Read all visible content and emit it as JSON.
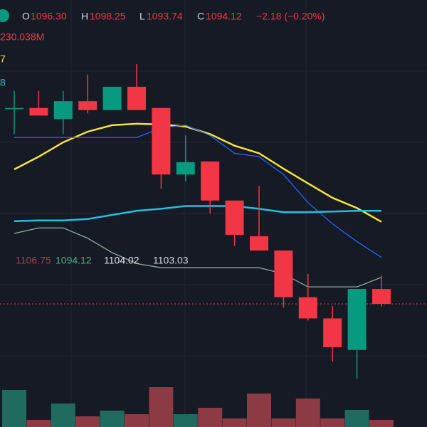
{
  "chart_data": {
    "type": "candlestick",
    "header": {
      "open_label": "O",
      "open": "1096.30",
      "high_label": "H",
      "high": "1098.25",
      "low_label": "L",
      "low": "1093.74",
      "close_label": "C",
      "close": "1094.12",
      "change": "−2.18 (−0.20%)"
    },
    "volume_label": "230.038M",
    "ma_label_1": "7",
    "ma_label_2": "8",
    "band_labels": [
      "1106.75",
      "1094.12",
      "1104.02",
      "1103.03"
    ],
    "categories": [
      null,
      null,
      null,
      null,
      null,
      null,
      null,
      null,
      null,
      null,
      null,
      null,
      null,
      null,
      null,
      null
    ],
    "open": [
      1122.7,
      1122.7,
      1121.1,
      1123.7,
      1122.4,
      1125.8,
      1122.7,
      1113.0,
      1114.9,
      1109.2,
      1104.0,
      1101.9,
      1095.1,
      1092.0,
      1087.4,
      1096.3
    ],
    "high": [
      1125.2,
      1125.2,
      1125.2,
      1127.6,
      1125.8,
      1129.1,
      1122.7,
      1118.7,
      1114.9,
      1109.2,
      1111.3,
      1101.9,
      1098.5,
      1093.8,
      1096.3,
      1098.25
    ],
    "low": [
      1118.9,
      1121.6,
      1118.9,
      1121.9,
      1122.4,
      1122.4,
      1110.9,
      1112.0,
      1107.3,
      1102.6,
      1101.9,
      1093.6,
      1091.7,
      1085.7,
      1083.2,
      1093.74
    ],
    "close": [
      1122.7,
      1121.6,
      1123.7,
      1122.4,
      1125.8,
      1122.4,
      1113.0,
      1114.8,
      1109.2,
      1104.2,
      1101.9,
      1095.1,
      1092.0,
      1087.8,
      1096.3,
      1094.12
    ],
    "up_color": "#089981",
    "down_color": "#f23645",
    "series": [
      {
        "color": "#f5e339",
        "values": [
          1113.75,
          1115.6,
          1117.7,
          1119.25,
          1120.2,
          1120.4,
          1120.3,
          1120.0,
          1118.9,
          1117.2,
          1116.1,
          1113.85,
          1111.7,
          1109.6,
          1108.1,
          1106.1
        ]
      },
      {
        "color": "#2962ff",
        "values": [
          1118.4,
          1118.4,
          1118.4,
          1118.4,
          1118.4,
          1118.4,
          1119.8,
          1120.2,
          1118.7,
          1116.1,
          1115.6,
          1113.0,
          1108.9,
          1105.8,
          1103.2,
          1100.9
        ]
      },
      {
        "color": "#22c0e0",
        "values": [
          1106.2,
          1106.3,
          1106.3,
          1106.5,
          1107.1,
          1107.7,
          1108.0,
          1108.4,
          1108.4,
          1108.4,
          1108.0,
          1107.5,
          1107.5,
          1107.6,
          1107.7,
          1107.7
        ]
      },
      {
        "color": "#8fa89a",
        "values": [
          1104.4,
          1105.2,
          1105.2,
          1103.7,
          1101.6,
          1100.0,
          1099.4,
          1099.4,
          1099.4,
          1099.4,
          1099.4,
          1098.5,
          1096.6,
          1096.6,
          1096.6,
          1098.0
        ]
      }
    ],
    "volume": [
      52,
      10,
      33,
      15,
      23,
      18,
      56,
      18,
      27,
      12,
      47,
      12,
      40,
      12,
      24,
      10
    ],
    "volume_up_color": "#1f6b5f",
    "volume_down_color": "#8c3a44",
    "ylim": [
      1076.16,
      1138.46
    ],
    "volume_ylim": [
      0,
      100
    ]
  }
}
